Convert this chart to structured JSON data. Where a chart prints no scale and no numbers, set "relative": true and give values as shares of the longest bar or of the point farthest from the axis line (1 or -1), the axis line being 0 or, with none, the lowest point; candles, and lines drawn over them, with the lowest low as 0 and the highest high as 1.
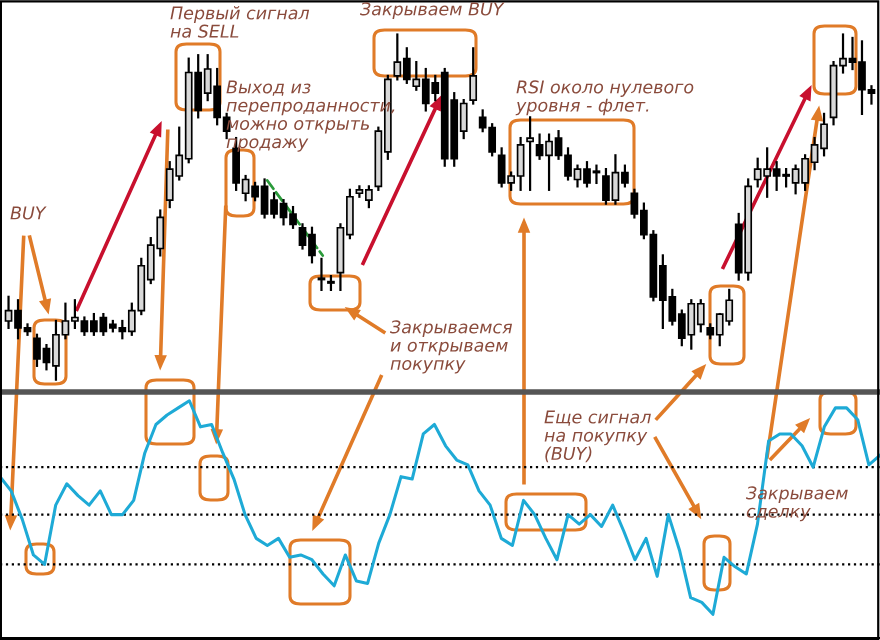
{
  "chart_data": [
    {
      "type": "candlestick",
      "relative": true,
      "categories": [
        null,
        null,
        null,
        null,
        null,
        null,
        null,
        null,
        null,
        null,
        null,
        null,
        null,
        null,
        null,
        null,
        null,
        null,
        null,
        null,
        null,
        null,
        null,
        null,
        null,
        null,
        null,
        null,
        null,
        null,
        null,
        null,
        null,
        null,
        null,
        null,
        null,
        null,
        null,
        null,
        null,
        null,
        null,
        null,
        null,
        null,
        null,
        null,
        null,
        null,
        null,
        null,
        null,
        null,
        null,
        null,
        null,
        null,
        null,
        null,
        null,
        null,
        null,
        null,
        null,
        null,
        null,
        null,
        null,
        null,
        null,
        null,
        null,
        null,
        null,
        null,
        null,
        null,
        null,
        null,
        null,
        null,
        null,
        null,
        null,
        null,
        null,
        null,
        null,
        null,
        null,
        null
      ],
      "ohlc": [
        [
          0.17,
          0.24,
          0.15,
          0.2
        ],
        [
          0.2,
          0.23,
          0.12,
          0.15
        ],
        [
          0.15,
          0.16,
          0.13,
          0.14
        ],
        [
          0.12,
          0.13,
          0.04,
          0.06
        ],
        [
          0.09,
          0.1,
          0.03,
          0.05
        ],
        [
          0.04,
          0.17,
          0.0,
          0.13
        ],
        [
          0.13,
          0.22,
          0.12,
          0.17
        ],
        [
          0.17,
          0.23,
          0.15,
          0.18
        ],
        [
          0.17,
          0.18,
          0.13,
          0.14
        ],
        [
          0.17,
          0.19,
          0.13,
          0.14
        ],
        [
          0.18,
          0.19,
          0.13,
          0.14
        ],
        [
          0.16,
          0.17,
          0.14,
          0.15
        ],
        [
          0.15,
          0.17,
          0.12,
          0.14
        ],
        [
          0.14,
          0.22,
          0.13,
          0.2
        ],
        [
          0.2,
          0.35,
          0.19,
          0.33
        ],
        [
          0.29,
          0.41,
          0.28,
          0.39
        ],
        [
          0.38,
          0.49,
          0.36,
          0.47
        ],
        [
          0.52,
          0.63,
          0.5,
          0.61
        ],
        [
          0.59,
          0.73,
          0.58,
          0.65
        ],
        [
          0.64,
          0.93,
          0.63,
          0.89
        ],
        [
          0.89,
          0.94,
          0.76,
          0.78
        ],
        [
          0.83,
          0.94,
          0.81,
          0.9
        ],
        [
          0.85,
          0.9,
          0.74,
          0.76
        ],
        [
          0.76,
          0.77,
          0.7,
          0.72
        ],
        [
          0.67,
          0.7,
          0.55,
          0.57
        ],
        [
          0.54,
          0.59,
          0.52,
          0.58
        ],
        [
          0.56,
          0.57,
          0.52,
          0.53
        ],
        [
          0.56,
          0.58,
          0.47,
          0.48
        ],
        [
          0.52,
          0.54,
          0.47,
          0.48
        ],
        [
          0.51,
          0.52,
          0.45,
          0.47
        ],
        [
          0.48,
          0.5,
          0.44,
          0.45
        ],
        [
          0.44,
          0.45,
          0.38,
          0.39
        ],
        [
          0.42,
          0.44,
          0.34,
          0.36
        ],
        [
          0.29,
          0.35,
          0.26,
          0.29
        ],
        [
          0.28,
          0.3,
          0.26,
          0.28
        ],
        [
          0.31,
          0.45,
          0.26,
          0.44
        ],
        [
          0.42,
          0.55,
          0.41,
          0.53
        ],
        [
          0.54,
          0.56,
          0.53,
          0.55
        ],
        [
          0.52,
          0.56,
          0.5,
          0.55
        ],
        [
          0.56,
          0.73,
          0.55,
          0.72
        ],
        [
          0.66,
          0.88,
          0.64,
          0.87
        ],
        [
          0.88,
          1.0,
          0.87,
          0.92
        ],
        [
          0.93,
          0.96,
          0.86,
          0.87
        ],
        [
          0.85,
          0.92,
          0.84,
          0.87
        ],
        [
          0.87,
          0.9,
          0.78,
          0.8
        ],
        [
          0.86,
          0.88,
          0.81,
          0.83
        ],
        [
          0.89,
          0.9,
          0.62,
          0.64
        ],
        [
          0.81,
          0.83,
          0.62,
          0.64
        ],
        [
          0.72,
          0.81,
          0.7,
          0.8
        ],
        [
          0.81,
          0.96,
          0.8,
          0.88
        ],
        [
          0.76,
          0.78,
          0.72,
          0.73
        ],
        [
          0.73,
          0.74,
          0.65,
          0.66
        ],
        [
          0.65,
          0.67,
          0.56,
          0.57
        ],
        [
          0.57,
          0.6,
          0.55,
          0.59
        ],
        [
          0.59,
          0.7,
          0.55,
          0.68
        ],
        [
          0.69,
          0.76,
          0.55,
          0.7
        ],
        [
          0.68,
          0.71,
          0.64,
          0.65
        ],
        [
          0.65,
          0.71,
          0.55,
          0.69
        ],
        [
          0.7,
          0.72,
          0.64,
          0.65
        ],
        [
          0.65,
          0.67,
          0.58,
          0.59
        ],
        [
          0.58,
          0.62,
          0.56,
          0.61
        ],
        [
          0.61,
          0.63,
          0.56,
          0.57
        ],
        [
          0.6,
          0.62,
          0.57,
          0.6
        ],
        [
          0.59,
          0.61,
          0.51,
          0.52
        ],
        [
          0.52,
          0.65,
          0.51,
          0.6
        ],
        [
          0.6,
          0.62,
          0.56,
          0.57
        ],
        [
          0.54,
          0.55,
          0.47,
          0.48
        ],
        [
          0.49,
          0.51,
          0.41,
          0.42
        ],
        [
          0.42,
          0.43,
          0.23,
          0.24
        ],
        [
          0.33,
          0.36,
          0.15,
          0.23
        ],
        [
          0.24,
          0.26,
          0.16,
          0.17
        ],
        [
          0.19,
          0.2,
          0.1,
          0.12
        ],
        [
          0.13,
          0.23,
          0.09,
          0.22
        ],
        [
          0.16,
          0.23,
          0.14,
          0.22
        ],
        [
          0.15,
          0.16,
          0.12,
          0.13
        ],
        [
          0.13,
          0.19,
          0.1,
          0.19
        ],
        [
          0.17,
          0.26,
          0.16,
          0.23
        ],
        [
          0.45,
          0.48,
          0.29,
          0.31
        ],
        [
          0.31,
          0.58,
          0.29,
          0.56
        ],
        [
          0.58,
          0.64,
          0.56,
          0.61
        ],
        [
          0.59,
          0.67,
          0.53,
          0.61
        ],
        [
          0.61,
          0.63,
          0.55,
          0.59
        ],
        [
          0.59,
          0.61,
          0.56,
          0.59
        ],
        [
          0.57,
          0.62,
          0.54,
          0.61
        ],
        [
          0.57,
          0.65,
          0.55,
          0.64
        ],
        [
          0.63,
          0.7,
          0.61,
          0.68
        ],
        [
          0.67,
          0.77,
          0.65,
          0.74
        ],
        [
          0.76,
          0.92,
          0.74,
          0.91
        ],
        [
          0.91,
          1.0,
          0.89,
          0.93
        ],
        [
          0.93,
          0.99,
          0.9,
          0.92
        ],
        [
          0.92,
          0.98,
          0.77,
          0.84
        ],
        [
          0.84,
          0.85,
          0.8,
          0.83
        ]
      ],
      "annotations": [
        "Первый сигнал\nна SELL",
        "Выход из\nперепроданности,\nможно открыть\nпродажу",
        "BUY",
        "Закрываем BUY",
        "Закрываемся\nи открываем\nпокупку",
        "RSI около нулевого\nуровня - флет."
      ]
    },
    {
      "type": "line",
      "relative": true,
      "categories": [
        null,
        null,
        null,
        null,
        null,
        null,
        null,
        null,
        null,
        null,
        null,
        null,
        null,
        null,
        null,
        null,
        null,
        null,
        null,
        null,
        null,
        null,
        null,
        null,
        null,
        null,
        null,
        null,
        null,
        null,
        null,
        null,
        null,
        null,
        null,
        null,
        null,
        null,
        null,
        null,
        null,
        null,
        null,
        null,
        null,
        null,
        null,
        null,
        null,
        null,
        null,
        null,
        null,
        null,
        null,
        null,
        null,
        null,
        null,
        null,
        null,
        null,
        null,
        null,
        null,
        null,
        null,
        null,
        null,
        null,
        null,
        null,
        null,
        null,
        null,
        null,
        null,
        null,
        null,
        null
      ],
      "series": [
        {
          "color": "#1eaad6",
          "values": [
            0.68,
            0.62,
            0.5,
            0.35,
            0.31,
            0.56,
            0.65,
            0.6,
            0.56,
            0.62,
            0.52,
            0.52,
            0.58,
            0.78,
            0.9,
            0.94,
            0.97,
            1.0,
            0.89,
            0.9,
            0.78,
            0.67,
            0.52,
            0.42,
            0.39,
            0.42,
            0.34,
            0.35,
            0.33,
            0.27,
            0.22,
            0.35,
            0.24,
            0.23,
            0.4,
            0.52,
            0.68,
            0.67,
            0.86,
            0.9,
            0.81,
            0.75,
            0.73,
            0.62,
            0.56,
            0.42,
            0.39,
            0.58,
            0.52,
            0.42,
            0.33,
            0.52,
            0.48,
            0.52,
            0.47,
            0.56,
            0.45,
            0.33,
            0.42,
            0.26,
            0.52,
            0.37,
            0.17,
            0.15,
            0.1,
            0.34,
            0.3,
            0.27,
            0.48,
            0.83,
            0.86,
            0.86,
            0.81,
            0.72,
            0.89,
            0.97,
            0.97,
            0.92,
            0.73,
            0.77
          ]
        }
      ],
      "ref_lines": [
        {
          "axis": "y",
          "value": 0.72,
          "color": "#000000",
          "line_style": "dotted"
        },
        {
          "axis": "y",
          "value": 0.52,
          "color": "#000000",
          "line_style": "dotted"
        },
        {
          "axis": "y",
          "value": 0.31,
          "color": "#000000",
          "line_style": "dotted"
        }
      ],
      "annotations": [
        "Еще сигнал\nна покупку\n(BUY)",
        "Закрываем\nсделку"
      ]
    }
  ]
}
